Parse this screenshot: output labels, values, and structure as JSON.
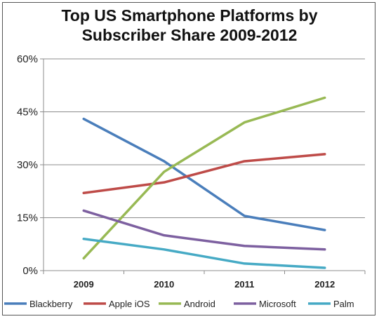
{
  "chart_data": {
    "type": "line",
    "title_line1": "Top US Smartphone Platforms by",
    "title_line2": "Subscriber Share 2009-2012",
    "x": [
      "2009",
      "2010",
      "2011",
      "2012"
    ],
    "ylim": [
      0,
      60
    ],
    "yticks": [
      "0%",
      "15%",
      "30%",
      "45%",
      "60%"
    ],
    "ytick_values": [
      0,
      15,
      30,
      45,
      60
    ],
    "grid": true,
    "legend_position": "bottom",
    "series": [
      {
        "name": "Blackberry",
        "color": "#4a7ebb",
        "values": [
          43,
          31,
          15.5,
          11.5
        ]
      },
      {
        "name": "Apple iOS",
        "color": "#be4b48",
        "values": [
          22,
          25,
          31,
          33
        ]
      },
      {
        "name": "Android",
        "color": "#98b954",
        "values": [
          3.5,
          28,
          42,
          49
        ]
      },
      {
        "name": "Microsoft",
        "color": "#7d60a0",
        "values": [
          17,
          10,
          7,
          6
        ]
      },
      {
        "name": "Palm",
        "color": "#46aac5",
        "values": [
          9,
          6,
          2,
          0.8
        ]
      }
    ]
  }
}
